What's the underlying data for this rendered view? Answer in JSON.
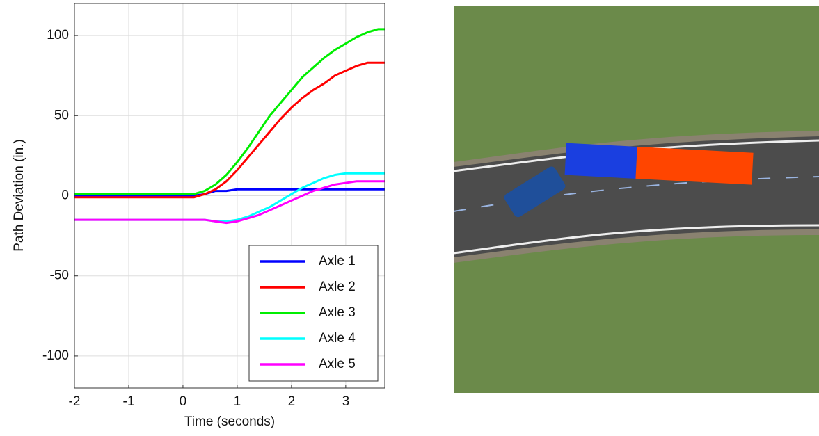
{
  "chart_data": {
    "type": "line",
    "xlabel": "Time (seconds)",
    "ylabel": "Path Deviation (in.)",
    "x": [
      -2,
      -1,
      0,
      0.2,
      0.4,
      0.6,
      0.8,
      1.0,
      1.2,
      1.4,
      1.6,
      1.8,
      2.0,
      2.2,
      2.4,
      2.6,
      2.8,
      3.0,
      3.2,
      3.4,
      3.6,
      3.72
    ],
    "series": [
      {
        "name": "Axle 1",
        "color": "#0000ff",
        "values": [
          0,
          0,
          0,
          0,
          1,
          3,
          3,
          4,
          4,
          4,
          4,
          4,
          4,
          4,
          4,
          4,
          4,
          4,
          4,
          4,
          4,
          4
        ]
      },
      {
        "name": "Axle 2",
        "color": "#ff0000",
        "values": [
          -1,
          -1,
          -1,
          -1,
          1,
          4,
          9,
          16,
          24,
          32,
          40,
          48,
          55,
          61,
          66,
          70,
          75,
          78,
          81,
          83,
          83,
          83
        ]
      },
      {
        "name": "Axle 3",
        "color": "#00ee00",
        "values": [
          1,
          1,
          1,
          1,
          3,
          7,
          13,
          21,
          30,
          40,
          50,
          58,
          66,
          74,
          80,
          86,
          91,
          95,
          99,
          102,
          104,
          104
        ]
      },
      {
        "name": "Axle 4",
        "color": "#00ffff",
        "values": [
          -15,
          -15,
          -15,
          -15,
          -15,
          -16,
          -16,
          -15,
          -13,
          -10,
          -7,
          -3,
          1,
          5,
          8,
          11,
          13,
          14,
          14,
          14,
          14,
          14
        ]
      },
      {
        "name": "Axle 5",
        "color": "#ff00ff",
        "values": [
          -15,
          -15,
          -15,
          -15,
          -15,
          -16,
          -17,
          -16,
          -14,
          -12,
          -9,
          -6,
          -3,
          0,
          3,
          5,
          7,
          8,
          9,
          9,
          9,
          9
        ]
      }
    ],
    "xlim": [
      -2,
      3.72
    ],
    "ylim": [
      -120,
      120
    ],
    "xticks": [
      -2,
      -1,
      0,
      1,
      2,
      3
    ],
    "yticks": [
      -100,
      -50,
      0,
      50,
      100
    ],
    "grid": true,
    "legend": "lower right"
  }
}
